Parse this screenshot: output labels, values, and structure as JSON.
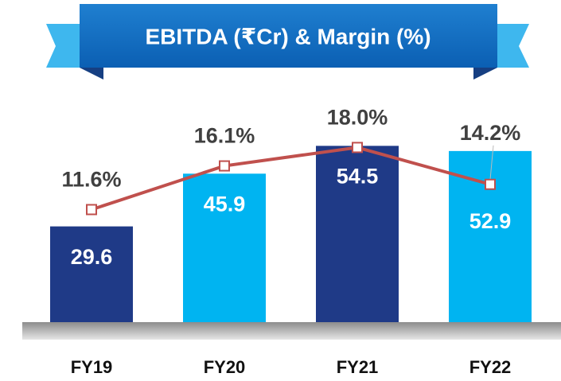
{
  "chart_data": {
    "type": "bar+line",
    "title": "EBITDA (₹Cr) & Margin (%)",
    "categories": [
      "FY19",
      "FY20",
      "FY21",
      "FY22"
    ],
    "series": [
      {
        "type": "bar",
        "colors": [
          "#1f3a87",
          "#00b4f1",
          "#1f3a87",
          "#00b4f1"
        ],
        "values": [
          29.6,
          45.9,
          54.5,
          52.9
        ]
      },
      {
        "type": "line",
        "axis": "y2",
        "color": "#c0504d",
        "values": [
          11.6,
          16.1,
          18.0,
          14.2
        ],
        "value_labels": [
          "11.6%",
          "16.1%",
          "18.0%",
          "14.2%"
        ]
      }
    ],
    "ylim": [
      0,
      60
    ],
    "y2lim": [
      0,
      20
    ]
  }
}
